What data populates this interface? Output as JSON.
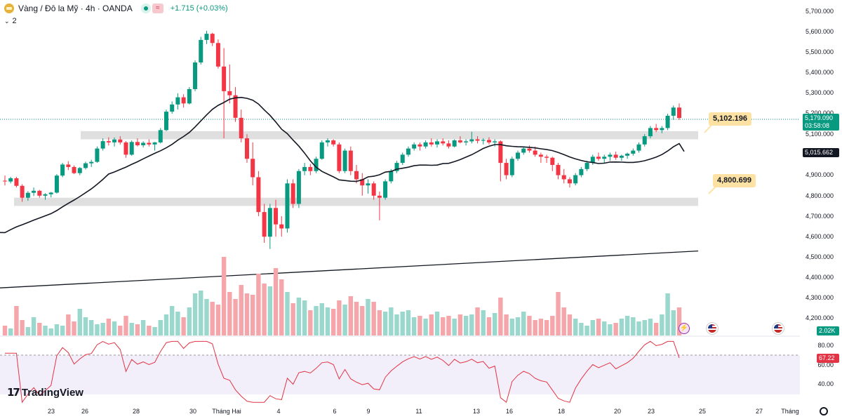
{
  "header": {
    "title": "Vàng / Đô la Mỹ · 4h · OANDA",
    "change": "+1.715 (+0.03%)",
    "approx_symbol": "≈",
    "indicator_count": "2",
    "indicator_chevron": "⌄"
  },
  "price_scale": {
    "labels": [
      "5,700.000",
      "5,600.000",
      "5,500.000",
      "5,400.000",
      "5,300.000",
      "5,200.000",
      "5,100.000",
      "4,900.000",
      "4,800.000",
      "4,700.000",
      "4,600.000",
      "4,500.000",
      "4,400.000",
      "4,300.000",
      "4,200.000"
    ],
    "last_price": "5,179.090",
    "countdown": "03:58:08",
    "sma_value": "5,015.662",
    "volume_value": "2.02K"
  },
  "callouts": {
    "upper": "5,102.196",
    "lower": "4,800.699"
  },
  "rsi": {
    "value": "67.22",
    "scale": [
      "80.00",
      "60.00",
      "40.00"
    ]
  },
  "time_axis": [
    "23",
    "26",
    "28",
    "30",
    "Tháng Hai",
    "4",
    "6",
    "9",
    "11",
    "13",
    "16",
    "18",
    "20",
    "23",
    "25",
    "27",
    "Tháng"
  ],
  "branding": {
    "logo_text": "TradingView",
    "logo_mark": "17"
  },
  "colors": {
    "up": "#089981",
    "down": "#f23645",
    "vol_up": "#9ad7cc",
    "vol_down": "#f5a6ab",
    "rsi": "#e23445",
    "callout": "#fde2a4"
  },
  "icons": [
    "gold-icon",
    "status-dot-icon",
    "approx-icon",
    "chevron-down-icon",
    "lightning-event-icon",
    "us-flag-icon",
    "settings-icon"
  ],
  "chart_data": {
    "type": "candlestick",
    "symbol": "XAUUSD",
    "interval": "4h",
    "ylim": [
      4150,
      5730
    ],
    "candles": [
      [
        4873,
        4898,
        4850,
        4870
      ],
      [
        4869,
        4892,
        4860,
        4885
      ],
      [
        4885,
        4892,
        4840,
        4848
      ],
      [
        4848,
        4856,
        4770,
        4790
      ],
      [
        4790,
        4822,
        4775,
        4814
      ],
      [
        4814,
        4840,
        4798,
        4824
      ],
      [
        4824,
        4828,
        4790,
        4800
      ],
      [
        4800,
        4812,
        4780,
        4807
      ],
      [
        4807,
        4818,
        4792,
        4815
      ],
      [
        4815,
        4905,
        4810,
        4898
      ],
      [
        4898,
        4960,
        4890,
        4952
      ],
      [
        4952,
        4968,
        4925,
        4940
      ],
      [
        4940,
        4948,
        4905,
        4910
      ],
      [
        4910,
        4940,
        4900,
        4935
      ],
      [
        4935,
        4966,
        4928,
        4958
      ],
      [
        4958,
        4975,
        4940,
        4965
      ],
      [
        4965,
        5040,
        4960,
        5030
      ],
      [
        5030,
        5080,
        5020,
        5066
      ],
      [
        5066,
        5085,
        5045,
        5060
      ],
      [
        5060,
        5084,
        5040,
        5074
      ],
      [
        5074,
        5090,
        5050,
        5060
      ],
      [
        5060,
        5066,
        4985,
        5000
      ],
      [
        5000,
        5070,
        4995,
        5062
      ],
      [
        5062,
        5080,
        5040,
        5046
      ],
      [
        5046,
        5065,
        5035,
        5058
      ],
      [
        5058,
        5075,
        5040,
        5050
      ],
      [
        5050,
        5062,
        5020,
        5060
      ],
      [
        5060,
        5130,
        5055,
        5120
      ],
      [
        5120,
        5220,
        5115,
        5210
      ],
      [
        5210,
        5260,
        5200,
        5245
      ],
      [
        5245,
        5300,
        5220,
        5280
      ],
      [
        5280,
        5295,
        5230,
        5250
      ],
      [
        5250,
        5330,
        5245,
        5320
      ],
      [
        5320,
        5460,
        5310,
        5450
      ],
      [
        5450,
        5575,
        5440,
        5560
      ],
      [
        5560,
        5605,
        5540,
        5590
      ],
      [
        5590,
        5595,
        5530,
        5545
      ],
      [
        5545,
        5562,
        5420,
        5430
      ],
      [
        5430,
        5520,
        5080,
        5310
      ],
      [
        5310,
        5440,
        5250,
        5290
      ],
      [
        5290,
        5330,
        5160,
        5180
      ],
      [
        5180,
        5220,
        5060,
        5080
      ],
      [
        5080,
        5100,
        4960,
        4980
      ],
      [
        4980,
        5060,
        4850,
        4890
      ],
      [
        4890,
        4920,
        4700,
        4720
      ],
      [
        4720,
        4760,
        4570,
        4600
      ],
      [
        4600,
        4760,
        4540,
        4740
      ],
      [
        4740,
        4780,
        4600,
        4660
      ],
      [
        4660,
        4700,
        4600,
        4640
      ],
      [
        4640,
        4880,
        4620,
        4860
      ],
      [
        4860,
        4880,
        4740,
        4760
      ],
      [
        4760,
        4930,
        4740,
        4920
      ],
      [
        4920,
        4960,
        4900,
        4940
      ],
      [
        4940,
        4955,
        4900,
        4920
      ],
      [
        4920,
        4990,
        4910,
        4980
      ],
      [
        4980,
        5070,
        4975,
        5060
      ],
      [
        5060,
        5080,
        5040,
        5070
      ],
      [
        5070,
        5075,
        5040,
        5050
      ],
      [
        5050,
        5060,
        4910,
        4920
      ],
      [
        4920,
        5030,
        4910,
        5020
      ],
      [
        5020,
        5040,
        4900,
        4920
      ],
      [
        4920,
        4950,
        4860,
        4880
      ],
      [
        4880,
        4910,
        4800,
        4850
      ],
      [
        4850,
        4880,
        4810,
        4860
      ],
      [
        4860,
        4870,
        4780,
        4800
      ],
      [
        4800,
        4820,
        4680,
        4790
      ],
      [
        4790,
        4880,
        4780,
        4870
      ],
      [
        4870,
        4930,
        4860,
        4920
      ],
      [
        4920,
        4970,
        4910,
        4960
      ],
      [
        4960,
        5010,
        4950,
        5000
      ],
      [
        5000,
        5040,
        4990,
        5030
      ],
      [
        5030,
        5060,
        5020,
        5050
      ],
      [
        5050,
        5060,
        5020,
        5040
      ],
      [
        5040,
        5070,
        5030,
        5060
      ],
      [
        5060,
        5080,
        5040,
        5050
      ],
      [
        5050,
        5075,
        5035,
        5065
      ],
      [
        5065,
        5080,
        5045,
        5055
      ],
      [
        5055,
        5070,
        5030,
        5040
      ],
      [
        5040,
        5075,
        5035,
        5070
      ],
      [
        5070,
        5090,
        5055,
        5060
      ],
      [
        5060,
        5075,
        5045,
        5065
      ],
      [
        5065,
        5112,
        5055,
        5075
      ],
      [
        5075,
        5090,
        5055,
        5068
      ],
      [
        5068,
        5080,
        5050,
        5072
      ],
      [
        5072,
        5085,
        5050,
        5060
      ],
      [
        5060,
        5075,
        5040,
        5065
      ],
      [
        5065,
        5070,
        4870,
        4960
      ],
      [
        4960,
        4980,
        4880,
        4900
      ],
      [
        4900,
        4990,
        4890,
        4980
      ],
      [
        4980,
        5020,
        4970,
        5010
      ],
      [
        5010,
        5040,
        5000,
        5030
      ],
      [
        5030,
        5045,
        5010,
        5020
      ],
      [
        5020,
        5040,
        4990,
        5000
      ],
      [
        5000,
        5010,
        4960,
        4990
      ],
      [
        4990,
        5000,
        4960,
        4985
      ],
      [
        4985,
        4990,
        4920,
        4950
      ],
      [
        4950,
        4960,
        4880,
        4900
      ],
      [
        4900,
        4930,
        4860,
        4880
      ],
      [
        4880,
        4890,
        4840,
        4860
      ],
      [
        4860,
        4910,
        4850,
        4900
      ],
      [
        4900,
        4940,
        4890,
        4930
      ],
      [
        4930,
        4970,
        4920,
        4960
      ],
      [
        4960,
        5000,
        4950,
        4990
      ],
      [
        4990,
        5010,
        4970,
        4980
      ],
      [
        4980,
        5000,
        4960,
        4990
      ],
      [
        4990,
        5010,
        4970,
        5000
      ],
      [
        5000,
        5015,
        4975,
        4985
      ],
      [
        4985,
        5000,
        4970,
        4995
      ],
      [
        4995,
        5010,
        4980,
        5005
      ],
      [
        5005,
        5030,
        4995,
        5020
      ],
      [
        5020,
        5060,
        5010,
        5050
      ],
      [
        5050,
        5100,
        5040,
        5090
      ],
      [
        5090,
        5140,
        5080,
        5130
      ],
      [
        5130,
        5150,
        5110,
        5120
      ],
      [
        5120,
        5140,
        5105,
        5130
      ],
      [
        5130,
        5200,
        5120,
        5190
      ],
      [
        5190,
        5240,
        5170,
        5230
      ],
      [
        5230,
        5250,
        5170,
        5179
      ]
    ],
    "sma": {
      "description": "moving average (black line)",
      "last": 5015.662
    },
    "trendline": {
      "from": 4350,
      "to": 4530
    },
    "support_zones": [
      [
        5075,
        5115
      ],
      [
        4750,
        4790
      ]
    ],
    "annotations": [
      5102.196,
      4800.699
    ],
    "rsi": {
      "last": 67.22,
      "levels": [
        70,
        30
      ]
    }
  }
}
